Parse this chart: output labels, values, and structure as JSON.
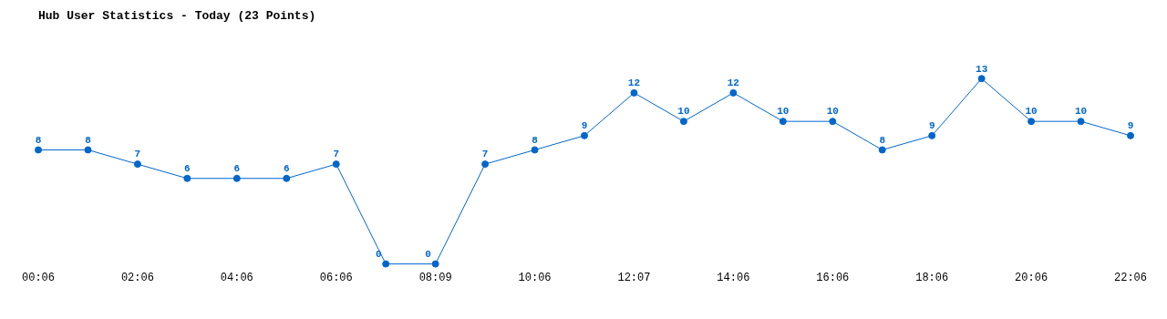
{
  "chart_data": {
    "type": "line",
    "title": "Hub User Statistics - Today (23 Points)",
    "categories": [
      "00:06",
      null,
      "02:06",
      null,
      "04:06",
      null,
      "06:06",
      null,
      "08:09",
      null,
      "10:06",
      null,
      "12:07",
      null,
      "14:06",
      null,
      "16:06",
      null,
      "18:06",
      null,
      "20:06",
      null,
      "22:06"
    ],
    "series": [
      {
        "color": "#0066cc",
        "values": [
          8,
          8,
          7,
          6,
          6,
          6,
          7,
          0,
          0,
          7,
          8,
          9,
          12,
          10,
          12,
          10,
          10,
          8,
          9,
          13,
          10,
          10,
          9
        ]
      }
    ],
    "data_labels": true,
    "marker": "circle"
  }
}
